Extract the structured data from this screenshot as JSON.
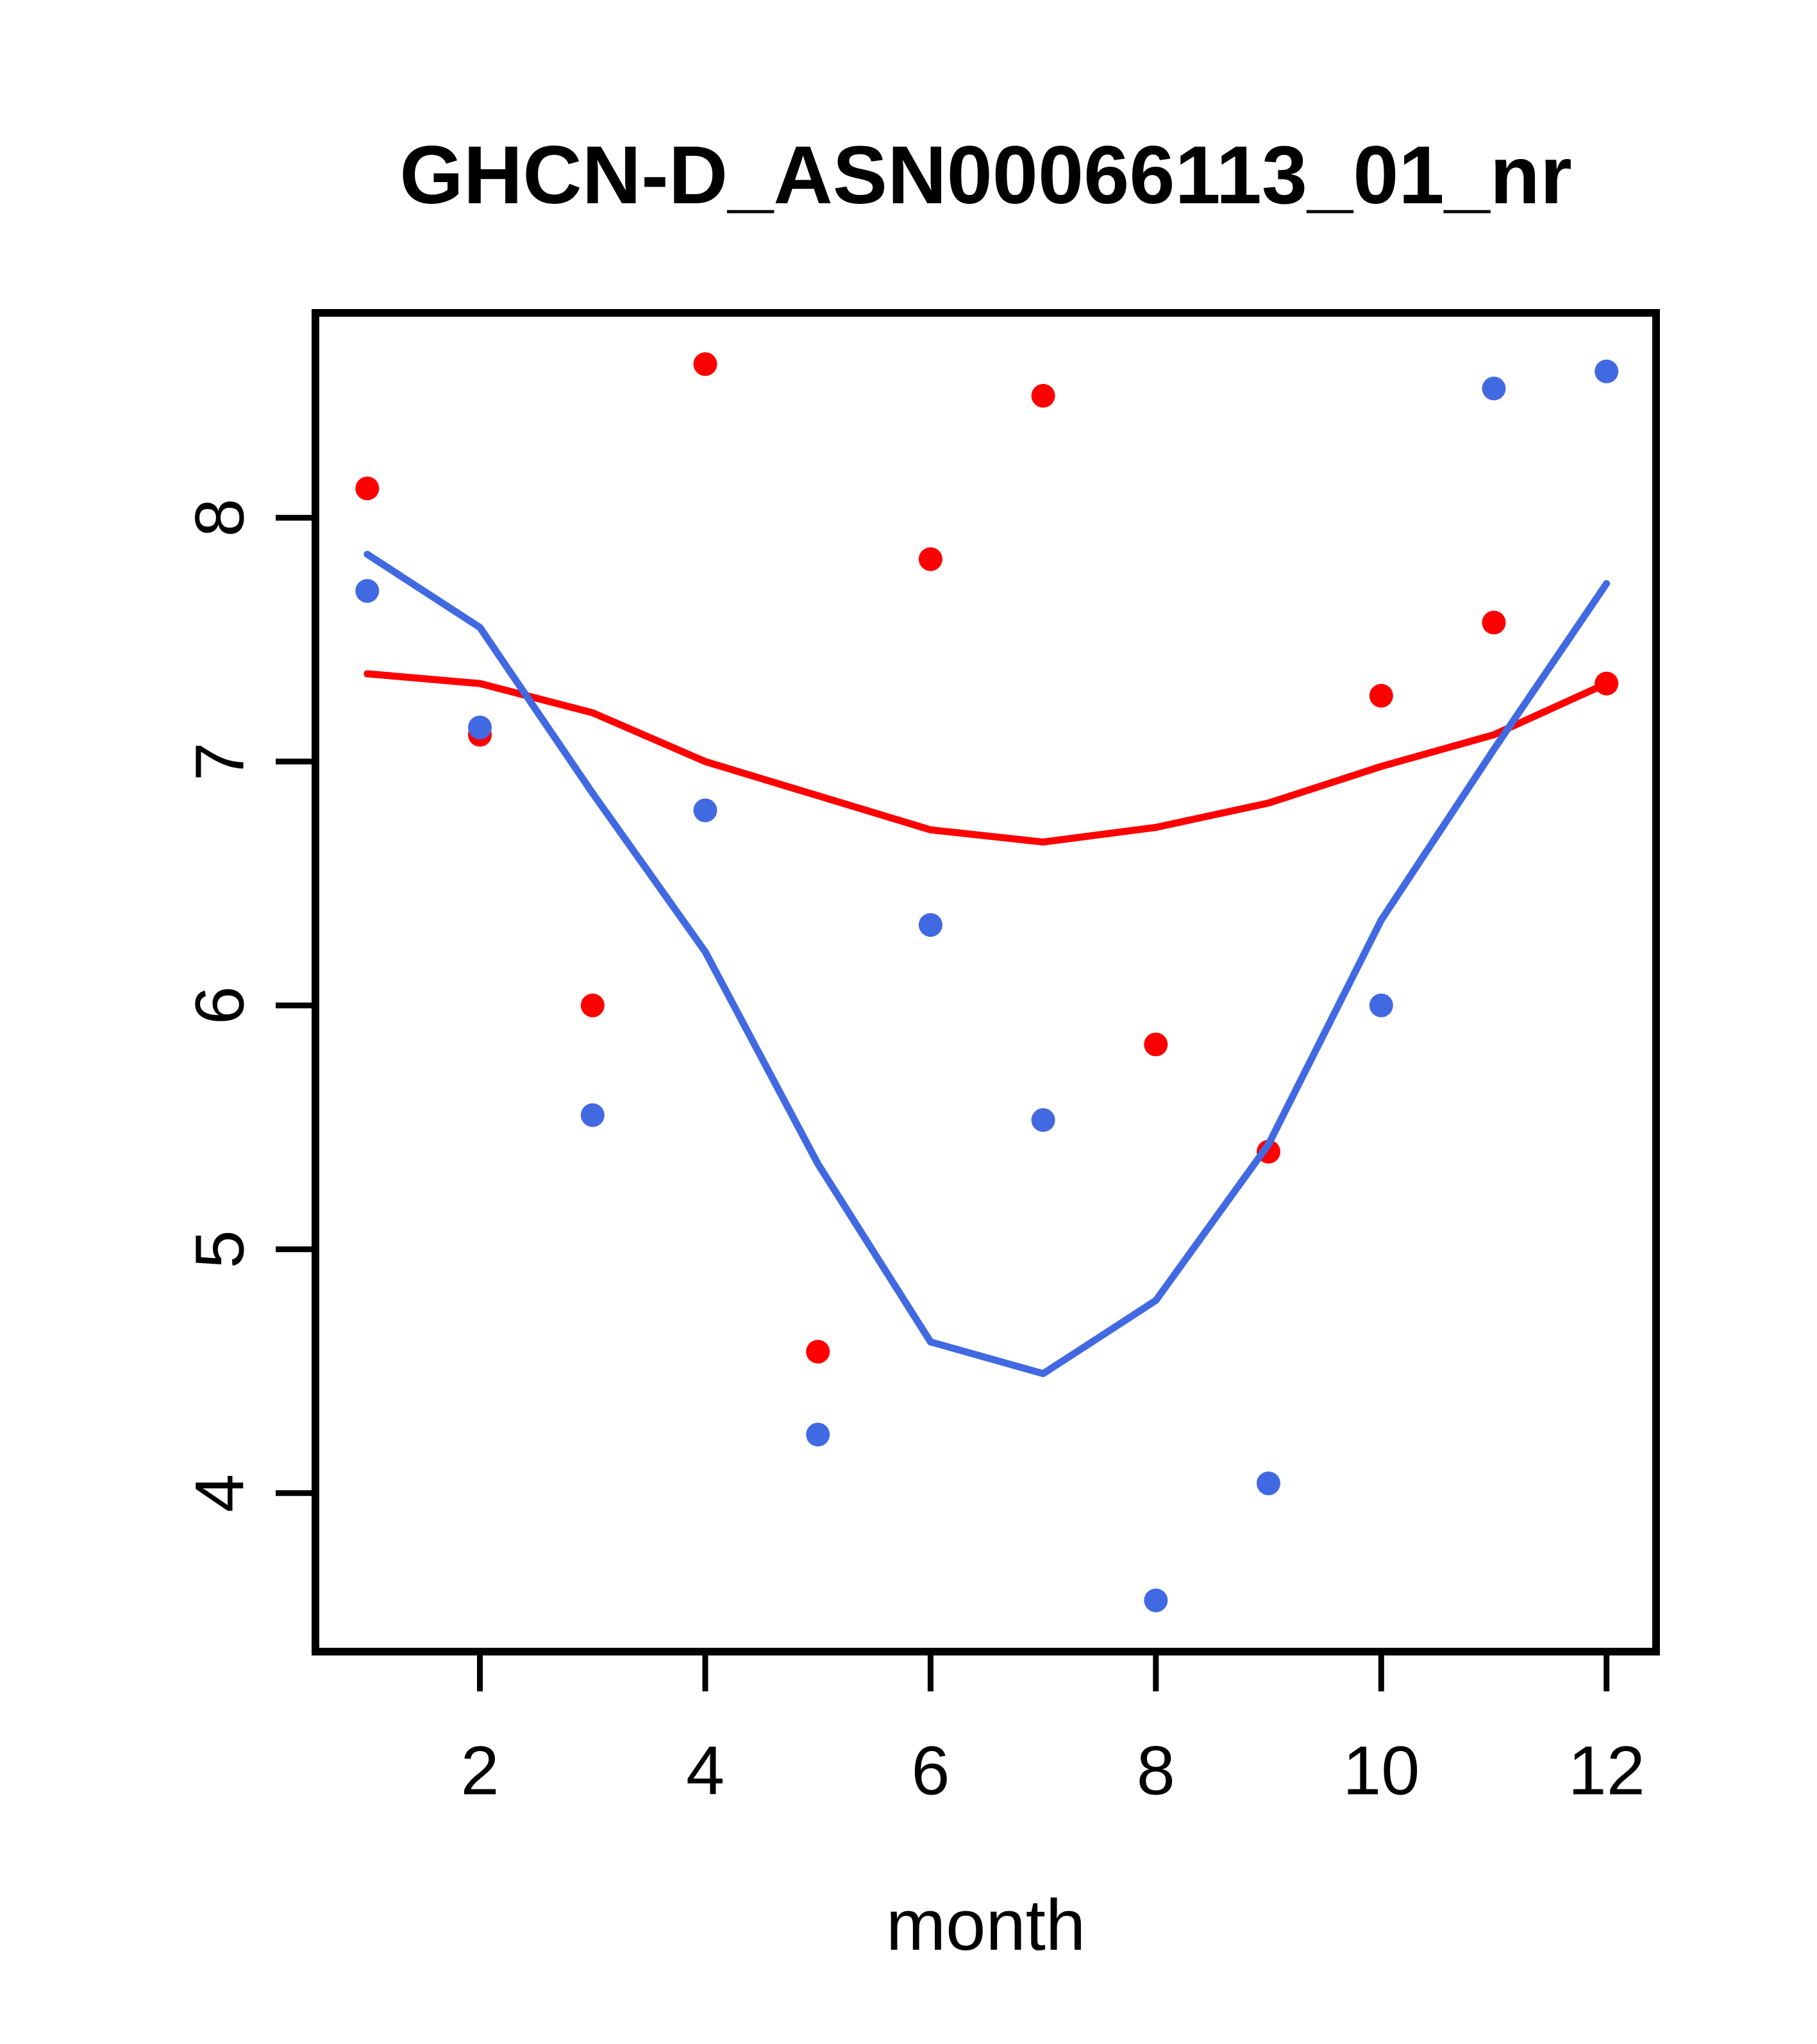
{
  "figure": {
    "title": "GHCN-D_ASN00066113_01_nr",
    "xlabel": "month"
  },
  "chart_data": {
    "type": "scatter",
    "title": "GHCN-D_ASN00066113_01_nr",
    "xlabel": "month",
    "ylabel": "",
    "x": [
      1,
      2,
      3,
      4,
      5,
      6,
      7,
      8,
      9,
      10,
      11,
      12
    ],
    "series": [
      {
        "name": "red-points",
        "kind": "points",
        "color": "#FF0000",
        "values": [
          8.12,
          7.11,
          6.0,
          8.63,
          4.58,
          7.83,
          8.5,
          5.84,
          5.4,
          7.27,
          7.57,
          7.32
        ]
      },
      {
        "name": "blue-points",
        "kind": "points",
        "color": "#4169E1",
        "values": [
          7.7,
          7.14,
          5.55,
          6.8,
          4.24,
          6.33,
          5.53,
          3.56,
          4.04,
          6.0,
          8.53,
          8.6
        ]
      },
      {
        "name": "red-smooth-line",
        "kind": "line",
        "color": "#FF0000",
        "values": [
          7.36,
          7.32,
          7.2,
          7.0,
          6.86,
          6.72,
          6.67,
          6.73,
          6.83,
          6.98,
          7.11,
          7.32
        ]
      },
      {
        "name": "blue-smooth-line",
        "kind": "line",
        "color": "#4169E1",
        "values": [
          7.85,
          7.55,
          6.87,
          6.22,
          5.35,
          4.62,
          4.49,
          4.79,
          5.43,
          6.35,
          7.05,
          7.73
        ]
      }
    ],
    "xticks": [
      2,
      4,
      6,
      8,
      10,
      12
    ],
    "yticks": [
      4,
      5,
      6,
      7,
      8
    ],
    "xlim": [
      0.54,
      12.44
    ],
    "ylim": [
      3.35,
      8.84
    ],
    "grid": false,
    "legend": null,
    "axis_color": "#000000",
    "background": "#ffffff"
  }
}
